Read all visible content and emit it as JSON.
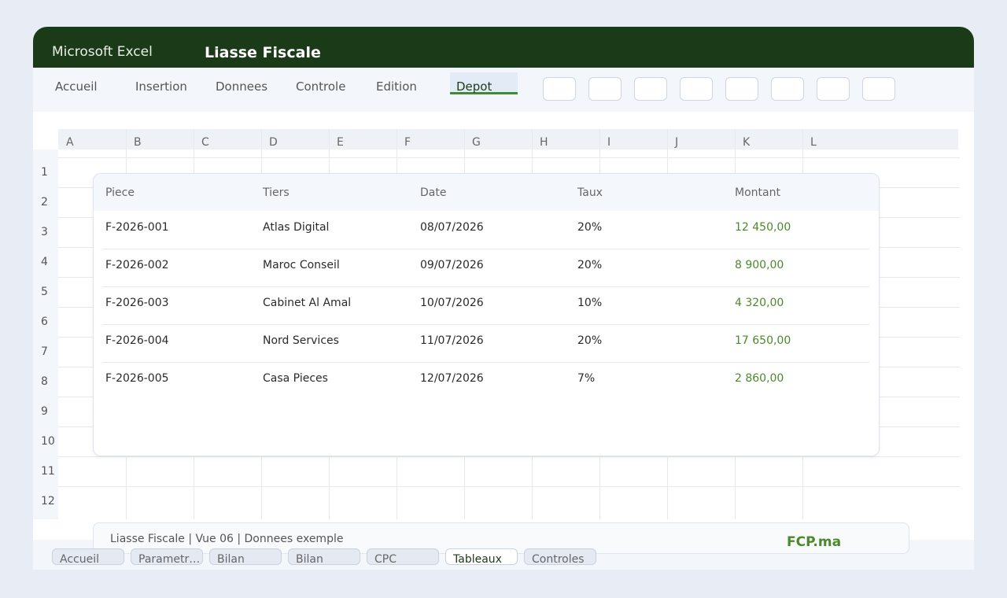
{
  "window": {
    "app": "Microsoft Excel",
    "title": "Liasse Fiscale"
  },
  "ribbon": {
    "tabs": [
      "Accueil",
      "Insertion",
      "Donnees",
      "Controle",
      "Edition",
      "Depot"
    ],
    "active": 5
  },
  "sheet": {
    "columns": [
      "A",
      "B",
      "C",
      "D",
      "E",
      "F",
      "G",
      "H",
      "I",
      "J",
      "K",
      "L"
    ],
    "rows": [
      "1",
      "2",
      "3",
      "4",
      "5",
      "6",
      "7",
      "8",
      "9",
      "10",
      "11",
      "12"
    ]
  },
  "table": {
    "headers": [
      "Piece",
      "Tiers",
      "Date",
      "Taux",
      "Montant"
    ],
    "rows": [
      [
        "F-2026-001",
        "Atlas Digital",
        "08/07/2026",
        "20%",
        "12 450,00"
      ],
      [
        "F-2026-002",
        "Maroc Conseil",
        "09/07/2026",
        "20%",
        "8 900,00"
      ],
      [
        "F-2026-003",
        "Cabinet Al Amal",
        "10/07/2026",
        "10%",
        "4 320,00"
      ],
      [
        "F-2026-004",
        "Nord Services",
        "11/07/2026",
        "20%",
        "17 650,00"
      ],
      [
        "F-2026-005",
        "Casa Pieces",
        "12/07/2026",
        "7%",
        "2 860,00"
      ]
    ]
  },
  "footer": {
    "status": "Liasse Fiscale | Vue 06 | Donnees exemple",
    "brand": "FCP.ma"
  },
  "sheet_tabs": {
    "tabs": [
      "Accueil",
      "Parametr…",
      "Bilan",
      "Bilan",
      "CPC",
      "Tableaux",
      "Controles"
    ],
    "active": 5
  }
}
